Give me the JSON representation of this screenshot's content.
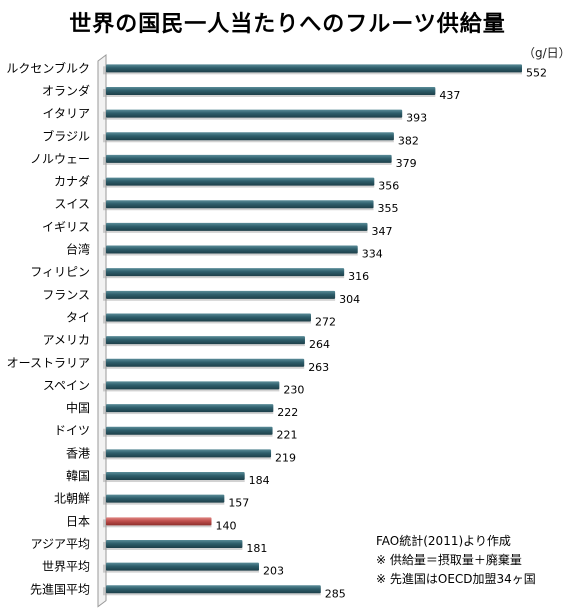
{
  "chart_data": {
    "type": "bar",
    "orientation": "horizontal",
    "title": "世界の国民一人当たりへのフルーツ供給量",
    "unit": "（g/日）",
    "categories": [
      "ルクセンブルク",
      "オランダ",
      "イタリア",
      "ブラジル",
      "ノルウェー",
      "カナダ",
      "スイス",
      "イギリス",
      "台湾",
      "フィリピン",
      "フランス",
      "タイ",
      "アメリカ",
      "オーストラリア",
      "スペイン",
      "中国",
      "ドイツ",
      "香港",
      "韓国",
      "北朝鮮",
      "日本",
      "アジア平均",
      "世界平均",
      "先進国平均"
    ],
    "values": [
      552,
      437,
      393,
      382,
      379,
      356,
      355,
      347,
      334,
      316,
      304,
      272,
      264,
      263,
      230,
      222,
      221,
      219,
      184,
      157,
      140,
      181,
      203,
      285
    ],
    "highlight": "日本",
    "colors": {
      "bar": "#2e5e6b",
      "highlight": "#c0504d"
    },
    "notes": [
      "FAO統計(2011)より作成",
      "※ 供給量＝摂取量＋廃棄量",
      "※ 先進国はOECD加盟34ヶ国"
    ]
  }
}
